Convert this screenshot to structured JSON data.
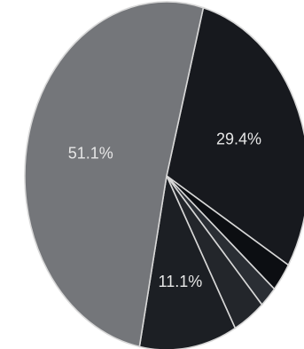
{
  "chart_data": {
    "type": "pie",
    "start_angle_deg": -75,
    "direction": "clockwise",
    "slices": [
      {
        "value": 29.4,
        "label": "29.4%",
        "color": "#17191e"
      },
      {
        "value": 2.7,
        "label": "",
        "color": "#0c0e12"
      },
      {
        "value": 2.0,
        "label": "",
        "color": "#2a2e34"
      },
      {
        "value": 3.7,
        "label": "",
        "color": "#23262b"
      },
      {
        "value": 11.1,
        "label": "11.1%",
        "color": "#1c1f24"
      },
      {
        "value": 51.1,
        "label": "51.1%",
        "color": "#74767a"
      }
    ]
  }
}
